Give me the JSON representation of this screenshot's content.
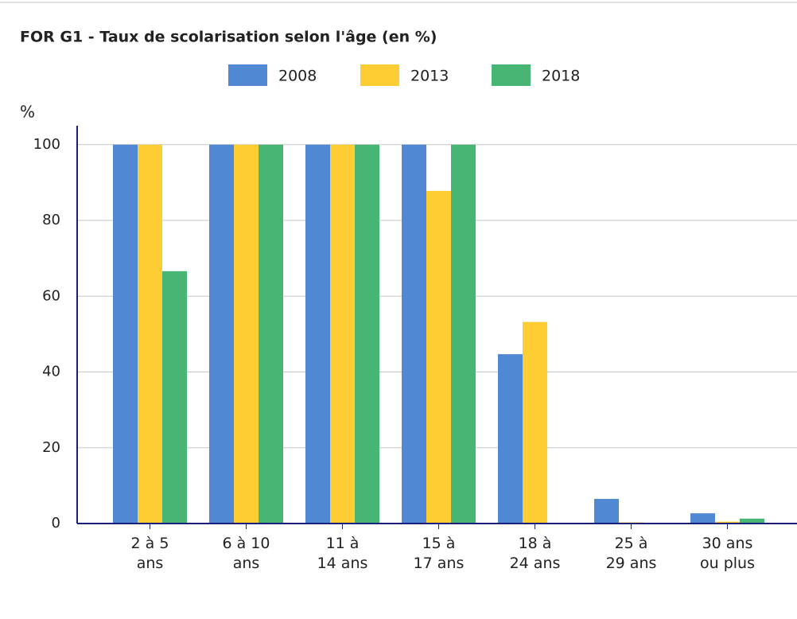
{
  "chart_data": {
    "type": "bar",
    "title": "FOR G1 - Taux de scolarisation selon l'âge (en %)",
    "y_label": "%",
    "categories": [
      "2 à 5\nans",
      "6 à 10\nans",
      "11 à\n14 ans",
      "15 à\n17 ans",
      "18 à\n24 ans",
      "25 à\n29 ans",
      "30 ans\nou plus"
    ],
    "series": [
      {
        "name": "2008",
        "color": "#5088d4",
        "values": [
          100,
          100,
          100,
          100,
          44.7,
          6.5,
          2.7
        ]
      },
      {
        "name": "2013",
        "color": "#fdcd33",
        "values": [
          100,
          100,
          100,
          87.8,
          53.2,
          0.3,
          0.5
        ]
      },
      {
        "name": "2018",
        "color": "#47b574",
        "values": [
          66.6,
          100,
          100,
          100,
          0.2,
          0.2,
          1.3
        ]
      }
    ],
    "ylim": [
      0,
      105
    ],
    "yticks": [
      0,
      20,
      40,
      60,
      80,
      100
    ],
    "grid": true
  }
}
